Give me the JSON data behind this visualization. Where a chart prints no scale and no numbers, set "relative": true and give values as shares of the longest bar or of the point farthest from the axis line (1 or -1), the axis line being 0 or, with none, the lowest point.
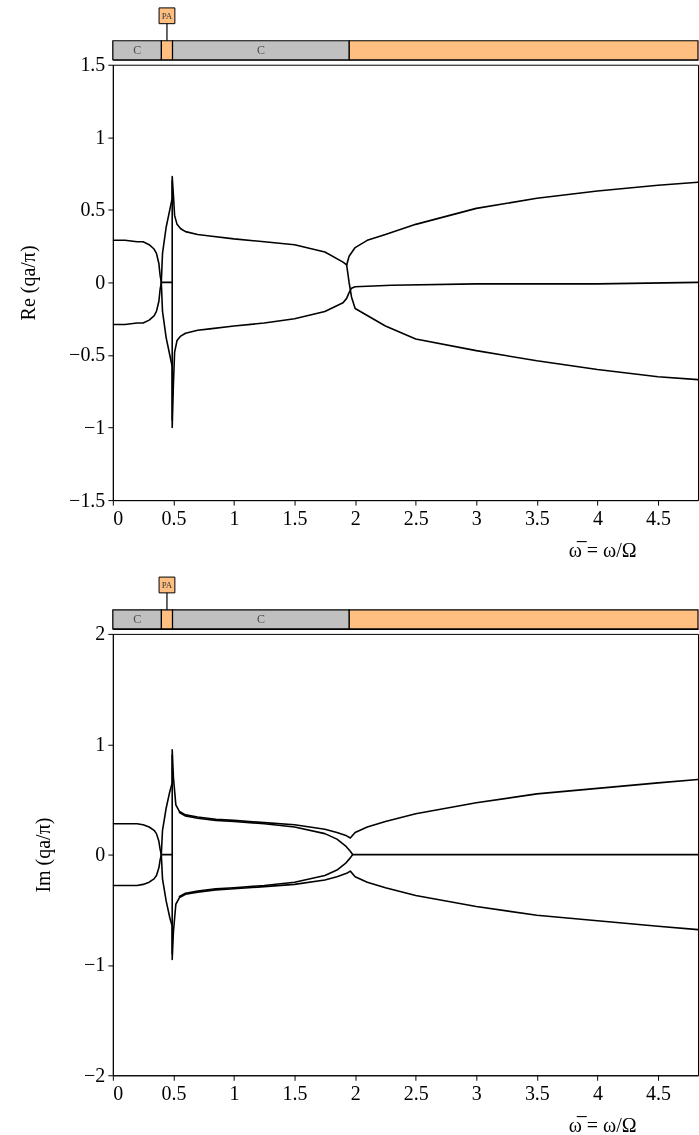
{
  "chart_data": [
    {
      "type": "bar",
      "orientation": "horizontal",
      "stacked": true,
      "relative": true,
      "categories": [
        null
      ],
      "tick_labels": false,
      "series": [
        {
          "name": "C",
          "color": "#c0c0c0",
          "values": [
            0.083
          ]
        },
        {
          "name": "PA",
          "color": "#ffbf80",
          "values": [
            0.019
          ]
        },
        {
          "name": "C",
          "color": "#c0c0c0",
          "values": [
            0.302
          ]
        },
        {
          "color": "#ffbf80",
          "values": [
            0.596
          ]
        }
      ]
    },
    {
      "type": "line",
      "xlabel": "ω̅ = ω/Ω",
      "ylabel": "Re (qa/π)",
      "xlim": [
        0,
        4.83
      ],
      "xticks": [
        0,
        0.5,
        1,
        1.5,
        2,
        2.5,
        3,
        3.5,
        4,
        4.5
      ],
      "ylim": [
        -1.5,
        1.5
      ],
      "yticks": [
        -1.5,
        -1,
        -0.5,
        0,
        0.5,
        1,
        1.5
      ],
      "line_style": "solid",
      "series": [
        {
          "color": "#000000",
          "x": [
            0,
            0.1,
            0.2,
            0.25,
            0.3,
            0.34,
            0.36,
            0.38,
            0.39,
            0.4,
            0.41,
            0.44,
            0.47,
            0.49,
            0.49,
            0.5,
            0.51,
            0.53,
            0.56,
            0.6,
            0.7,
            0.8,
            1.0,
            1.25,
            1.5,
            1.75,
            1.9,
            1.93,
            1.95,
            1.97,
            2.0,
            2.3,
            3.0,
            4.0,
            4.83
          ],
          "values": [
            0.29,
            0.29,
            0.28,
            0.28,
            0.26,
            0.23,
            0.2,
            0.13,
            0.05,
            0,
            -0.2,
            -0.38,
            -0.5,
            -0.58,
            -1.0,
            -0.7,
            -0.48,
            -0.4,
            -0.37,
            -0.35,
            -0.33,
            -0.32,
            -0.3,
            -0.28,
            -0.25,
            -0.2,
            -0.14,
            -0.11,
            -0.07,
            -0.04,
            -0.03,
            -0.02,
            -0.01,
            -0.01,
            0
          ]
        },
        {
          "color": "#000000",
          "x": [
            0,
            0.1,
            0.2,
            0.25,
            0.3,
            0.34,
            0.36,
            0.38,
            0.39,
            0.4,
            0.41,
            0.44,
            0.47,
            0.49,
            0.49,
            0.5,
            0.51,
            0.53,
            0.56,
            0.6,
            0.7,
            0.8,
            1.0,
            1.25,
            1.5,
            1.75,
            1.9,
            1.93,
            1.95,
            1.97,
            2.0,
            2.25,
            2.5,
            3.0,
            3.5,
            4.0,
            4.5,
            4.83
          ],
          "values": [
            -0.29,
            -0.29,
            -0.28,
            -0.28,
            -0.26,
            -0.23,
            -0.2,
            -0.13,
            -0.05,
            0,
            0.2,
            0.38,
            0.5,
            0.58,
            0.73,
            0.6,
            0.46,
            0.4,
            0.37,
            0.35,
            0.33,
            0.32,
            0.3,
            0.28,
            0.26,
            0.21,
            0.14,
            0.12,
            0,
            -0.1,
            -0.18,
            -0.3,
            -0.39,
            -0.47,
            -0.54,
            -0.6,
            -0.65,
            -0.67
          ]
        },
        {
          "color": "#000000",
          "x": [
            0.4,
            0.44,
            0.49,
            0.49,
            0.49
          ],
          "values": [
            0,
            0,
            0,
            0.7,
            -0.95
          ]
        },
        {
          "color": "#000000",
          "x": [
            1.93,
            1.95,
            2.0,
            2.1,
            2.25,
            2.5,
            3.0,
            3.5,
            4.0,
            4.5,
            4.83
          ],
          "values": [
            0.12,
            0.18,
            0.24,
            0.29,
            0.33,
            0.4,
            0.51,
            0.58,
            0.63,
            0.67,
            0.69
          ]
        }
      ]
    },
    {
      "type": "bar",
      "orientation": "horizontal",
      "stacked": true,
      "relative": true,
      "categories": [
        null
      ],
      "tick_labels": false,
      "series": [
        {
          "name": "C",
          "color": "#c0c0c0",
          "values": [
            0.083
          ]
        },
        {
          "name": "PA",
          "color": "#ffbf80",
          "values": [
            0.019
          ]
        },
        {
          "name": "C",
          "color": "#c0c0c0",
          "values": [
            0.302
          ]
        },
        {
          "color": "#ffbf80",
          "values": [
            0.596
          ]
        }
      ]
    },
    {
      "type": "line",
      "xlabel": "ω̅ = ω/Ω",
      "ylabel": "Im (qa/π)",
      "xlim": [
        0,
        4.83
      ],
      "xticks": [
        0,
        0.5,
        1,
        1.5,
        2,
        2.5,
        3,
        3.5,
        4,
        4.5
      ],
      "ylim": [
        -2,
        2
      ],
      "yticks": [
        -2,
        -1,
        0,
        1,
        2
      ],
      "line_style": "solid",
      "series": [
        {
          "color": "#000000",
          "x": [
            0,
            0.1,
            0.2,
            0.25,
            0.3,
            0.34,
            0.36,
            0.38,
            0.39,
            0.4,
            0.41,
            0.44,
            0.47,
            0.49,
            0.49,
            0.5,
            0.52,
            0.55,
            0.6,
            0.7,
            0.85,
            1.0,
            1.25,
            1.5,
            1.75,
            1.85,
            1.93,
            1.96,
            2.0,
            2.1,
            2.25,
            2.5,
            3.0,
            3.5,
            4.0,
            4.5,
            4.83
          ],
          "values": [
            0.28,
            0.28,
            0.28,
            0.27,
            0.25,
            0.22,
            0.19,
            0.12,
            0.05,
            0,
            -0.22,
            -0.42,
            -0.57,
            -0.65,
            -0.95,
            -0.7,
            -0.45,
            -0.39,
            -0.36,
            -0.34,
            -0.32,
            -0.31,
            -0.29,
            -0.27,
            -0.23,
            -0.2,
            -0.17,
            -0.15,
            -0.2,
            -0.25,
            -0.3,
            -0.37,
            -0.47,
            -0.55,
            -0.6,
            -0.65,
            -0.68
          ]
        },
        {
          "color": "#000000",
          "x": [
            0,
            0.1,
            0.2,
            0.25,
            0.3,
            0.34,
            0.36,
            0.38,
            0.39,
            0.4,
            0.41,
            0.44,
            0.47,
            0.49,
            0.49,
            0.5,
            0.52,
            0.55,
            0.6,
            0.7,
            0.85,
            1.0,
            1.25,
            1.5,
            1.75,
            1.85,
            1.93,
            1.96,
            2.0,
            2.1,
            2.25,
            2.5,
            3.0,
            3.5,
            4.0,
            4.5,
            4.83
          ],
          "values": [
            -0.28,
            -0.28,
            -0.28,
            -0.27,
            -0.25,
            -0.22,
            -0.19,
            -0.12,
            -0.05,
            0,
            0.22,
            0.42,
            0.57,
            0.65,
            0.95,
            0.7,
            0.45,
            0.39,
            0.36,
            0.34,
            0.32,
            0.31,
            0.29,
            0.27,
            0.23,
            0.2,
            0.17,
            0.15,
            0.2,
            0.25,
            0.3,
            0.37,
            0.47,
            0.55,
            0.6,
            0.65,
            0.68
          ]
        },
        {
          "color": "#000000",
          "x": [
            0.4,
            0.44,
            0.49,
            0.49,
            0.49
          ],
          "values": [
            0,
            0,
            0,
            0.9,
            -0.9
          ]
        },
        {
          "color": "#000000",
          "x": [
            0.55,
            0.6,
            0.7,
            0.85,
            1.0,
            1.25,
            1.5,
            1.75,
            1.85,
            1.92,
            1.96,
            1.98,
            2.1,
            3.0,
            4.0,
            4.83
          ],
          "values": [
            0.38,
            0.35,
            0.33,
            0.31,
            0.3,
            0.28,
            0.25,
            0.19,
            0.14,
            0.08,
            0.03,
            0,
            0,
            0,
            0,
            0
          ]
        },
        {
          "color": "#000000",
          "x": [
            0.55,
            0.6,
            0.7,
            0.85,
            1.0,
            1.25,
            1.5,
            1.75,
            1.85,
            1.92,
            1.96,
            1.98
          ],
          "values": [
            -0.38,
            -0.35,
            -0.33,
            -0.31,
            -0.3,
            -0.28,
            -0.25,
            -0.19,
            -0.14,
            -0.08,
            -0.03,
            0
          ]
        }
      ]
    }
  ]
}
